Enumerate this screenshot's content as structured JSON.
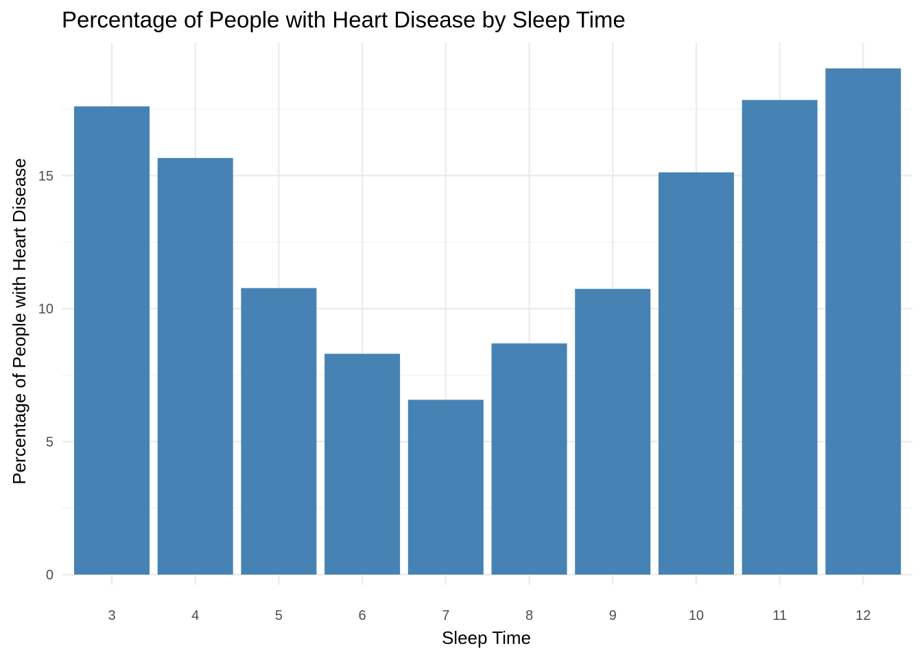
{
  "chart_data": {
    "type": "bar",
    "title": "Percentage of People with Heart Disease by Sleep Time",
    "xlabel": "Sleep Time",
    "ylabel": "Percentage of People with Heart Disease",
    "categories": [
      "3",
      "4",
      "5",
      "6",
      "7",
      "8",
      "9",
      "10",
      "11",
      "12"
    ],
    "values": [
      17.6,
      15.66,
      10.77,
      8.3,
      6.57,
      8.69,
      10.74,
      15.12,
      17.84,
      19.03
    ],
    "yticks": [
      0,
      5,
      10,
      15
    ],
    "ylim": [
      0,
      19.5
    ],
    "bar_color": "#4682B4",
    "grid": true,
    "legend": "none"
  }
}
